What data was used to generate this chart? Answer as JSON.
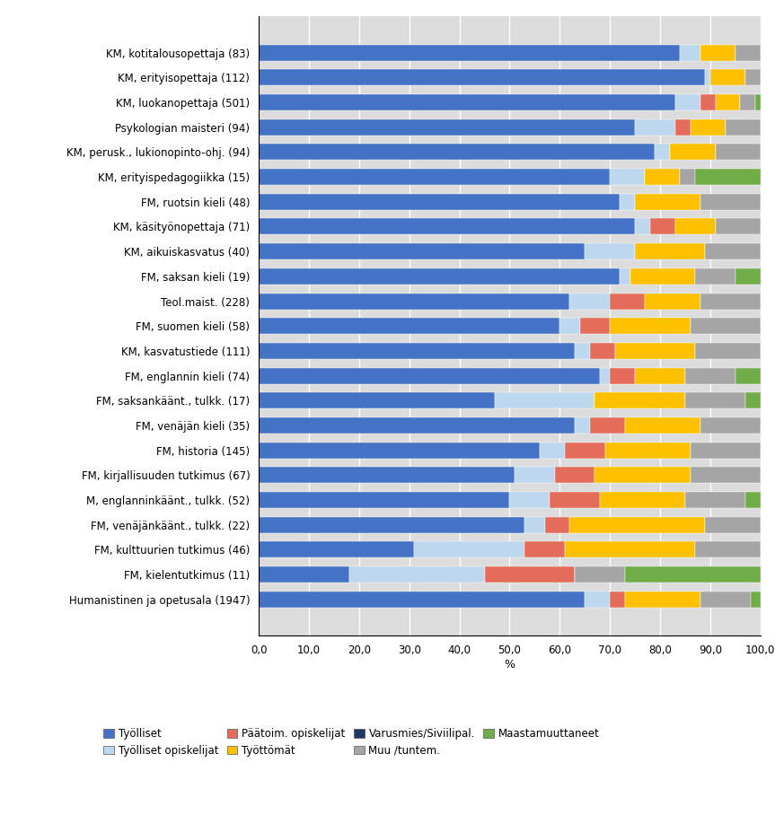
{
  "categories": [
    "KM, kotitalousopettaja (83)",
    "KM, erityisopettaja (112)",
    "KM, luokanopettaja (501)",
    "Psykologian maisteri (94)",
    "KM, perusk., lukionopinto-ohj. (94)",
    "KM, erityispedagogiikka (15)",
    "FM, ruotsin kieli (48)",
    "KM, käsityönopettaja (71)",
    "KM, aikuiskasvatus (40)",
    "FM, saksan kieli (19)",
    "Teol.maist. (228)",
    "FM, suomen kieli (58)",
    "KM, kasvatustiede (111)",
    "FM, englannin kieli (74)",
    "FM, saksankäänt., tulkk. (17)",
    "FM, venäjän kieli (35)",
    "FM, historia (145)",
    "FM, kirjallisuuden tutkimus (67)",
    "M, englanninkäänt., tulkk. (52)",
    "FM, venäjänkäänt., tulkk. (22)",
    "FM, kulttuurien tutkimus (46)",
    "FM, kielentutkimus (11)",
    "Humanistinen ja opetusala (1947)"
  ],
  "series": {
    "Työlliset": [
      84.0,
      89.0,
      83.0,
      75.0,
      79.0,
      70.0,
      72.0,
      75.0,
      65.0,
      72.0,
      62.0,
      60.0,
      63.0,
      68.0,
      47.0,
      63.0,
      56.0,
      51.0,
      50.0,
      53.0,
      31.0,
      18.0,
      65.0
    ],
    "Työlliset opiskelijat": [
      4.0,
      1.0,
      5.0,
      8.0,
      3.0,
      7.0,
      3.0,
      3.0,
      10.0,
      2.0,
      8.0,
      4.0,
      3.0,
      2.0,
      20.0,
      3.0,
      5.0,
      8.0,
      8.0,
      4.0,
      22.0,
      27.0,
      5.0
    ],
    "Päätoim. opiskelijat": [
      0.0,
      0.0,
      3.0,
      3.0,
      0.0,
      0.0,
      0.0,
      5.0,
      0.0,
      0.0,
      7.0,
      6.0,
      5.0,
      5.0,
      0.0,
      7.0,
      8.0,
      8.0,
      10.0,
      5.0,
      8.0,
      18.0,
      3.0
    ],
    "Työttömät": [
      7.0,
      7.0,
      5.0,
      7.0,
      9.0,
      7.0,
      13.0,
      8.0,
      14.0,
      13.0,
      11.0,
      16.0,
      16.0,
      10.0,
      18.0,
      15.0,
      17.0,
      19.0,
      17.0,
      27.0,
      26.0,
      0.0,
      15.0
    ],
    "Varusmies/Siviilipal.": [
      0.0,
      0.0,
      0.0,
      0.0,
      0.0,
      0.0,
      0.0,
      0.0,
      0.0,
      0.0,
      0.0,
      0.0,
      0.0,
      0.0,
      0.0,
      0.0,
      0.0,
      0.0,
      0.0,
      0.0,
      0.0,
      0.0,
      0.0
    ],
    "Muu /tuntem.": [
      5.0,
      3.0,
      3.0,
      7.0,
      9.0,
      3.0,
      12.0,
      9.0,
      11.0,
      8.0,
      12.0,
      14.0,
      13.0,
      10.0,
      12.0,
      12.0,
      14.0,
      14.0,
      12.0,
      11.0,
      13.0,
      10.0,
      10.0
    ],
    "Maastamuuttaneet": [
      0.0,
      0.0,
      1.0,
      0.0,
      0.0,
      13.0,
      0.0,
      0.0,
      0.0,
      5.0,
      0.0,
      0.0,
      0.0,
      5.0,
      3.0,
      0.0,
      0.0,
      0.0,
      3.0,
      0.0,
      0.0,
      27.0,
      2.0
    ]
  },
  "colors": {
    "Työlliset": "#4472C4",
    "Työlliset opiskelijat": "#BDD7EE",
    "Päätoim. opiskelijat": "#E36C5A",
    "Työttömät": "#FFC000",
    "Varusmies/Siviilipal.": "#1F3864",
    "Muu /tuntem.": "#A5A5A5",
    "Maastamuuttaneet": "#70AD47"
  },
  "xlabel": "%",
  "xlim": [
    0,
    100
  ],
  "xticks": [
    0.0,
    10.0,
    20.0,
    30.0,
    40.0,
    50.0,
    60.0,
    70.0,
    80.0,
    90.0,
    100.0
  ],
  "xticklabels": [
    "0,0",
    "10,0",
    "20,0",
    "30,0",
    "40,0",
    "50,0",
    "60,0",
    "70,0",
    "80,0",
    "90,0",
    "100,0"
  ],
  "legend_row1": [
    "Työlliset",
    "Työlliset opiskelijat",
    "Päätoim. opiskelijat",
    "Työttömät"
  ],
  "legend_row2": [
    "Varusmies/Siviilipal.",
    "Muu /tuntem.",
    "Maastamuuttaneet"
  ]
}
